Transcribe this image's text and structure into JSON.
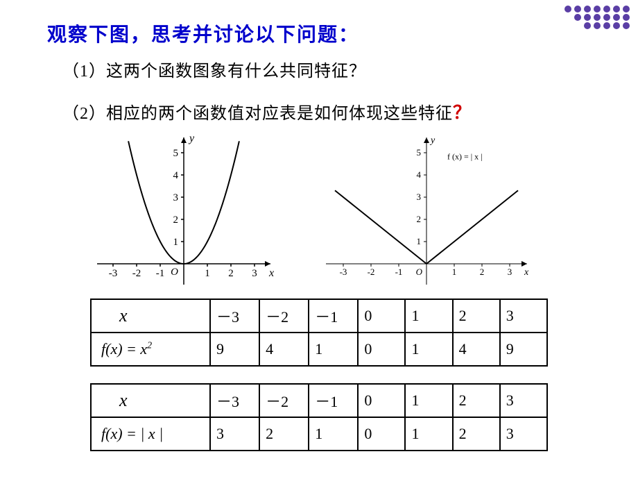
{
  "title": "观察下图，思考并讨论以下问题：",
  "q1": "（1）这两个函数图象有什么共同特征？",
  "q2_prefix": "（2）相应的两个函数值对应表是如何体现这些特征",
  "q2_suffix": "？",
  "chart_parabola": {
    "type": "line",
    "background_color": "#ffffff",
    "axis_color": "#000000",
    "line_color": "#000000",
    "x_ticks": [
      "-3",
      "-2",
      "-1",
      "O",
      "1",
      "2",
      "3"
    ],
    "y_ticks": [
      "1",
      "2",
      "3",
      "4",
      "5"
    ],
    "xlim": [
      -3.2,
      3.2
    ],
    "ylim": [
      -0.6,
      5.6
    ],
    "line_width": 2,
    "y_label": "y",
    "x_label": "x",
    "points_x": [
      -2.3,
      -2,
      -1.5,
      -1,
      -0.5,
      0,
      0.5,
      1,
      1.5,
      2,
      2.3
    ],
    "points_y": [
      5.29,
      4,
      2.25,
      1,
      0.25,
      0,
      0.25,
      1,
      2.25,
      4,
      5.29
    ]
  },
  "chart_abs": {
    "type": "line",
    "background_color": "#ffffff",
    "axis_color": "#000000",
    "line_color": "#000000",
    "x_ticks": [
      "-3",
      "-2",
      "-1",
      "O",
      "1",
      "2",
      "3"
    ],
    "y_ticks": [
      "1",
      "2",
      "3",
      "4",
      "5"
    ],
    "xlim": [
      -3.4,
      3.4
    ],
    "ylim": [
      -0.6,
      5.6
    ],
    "line_width": 2,
    "label": "f (x) = | x |",
    "label_fontsize": 12,
    "y_label": "y",
    "x_label": "x",
    "points_x": [
      -3.3,
      0,
      3.3
    ],
    "points_y": [
      3.3,
      0,
      3.3
    ]
  },
  "table1": {
    "header_var": "x",
    "func_label_html": "f(x) = x",
    "func_sup": "2",
    "x_vals": [
      "－3",
      "－2",
      "－1",
      "0",
      "1",
      "2",
      "3"
    ],
    "f_vals": [
      "9",
      "4",
      "1",
      "0",
      "1",
      "4",
      "9"
    ]
  },
  "table2": {
    "header_var": "x",
    "func_label_html": "f(x) = | x |",
    "x_vals": [
      "－3",
      "－2",
      "－1",
      "0",
      "1",
      "2",
      "3"
    ],
    "f_vals": [
      "3",
      "2",
      "1",
      "0",
      "1",
      "2",
      "3"
    ]
  },
  "decoration": {
    "dot_color": "#5a3ea5",
    "rows": [
      7,
      6,
      5
    ]
  }
}
